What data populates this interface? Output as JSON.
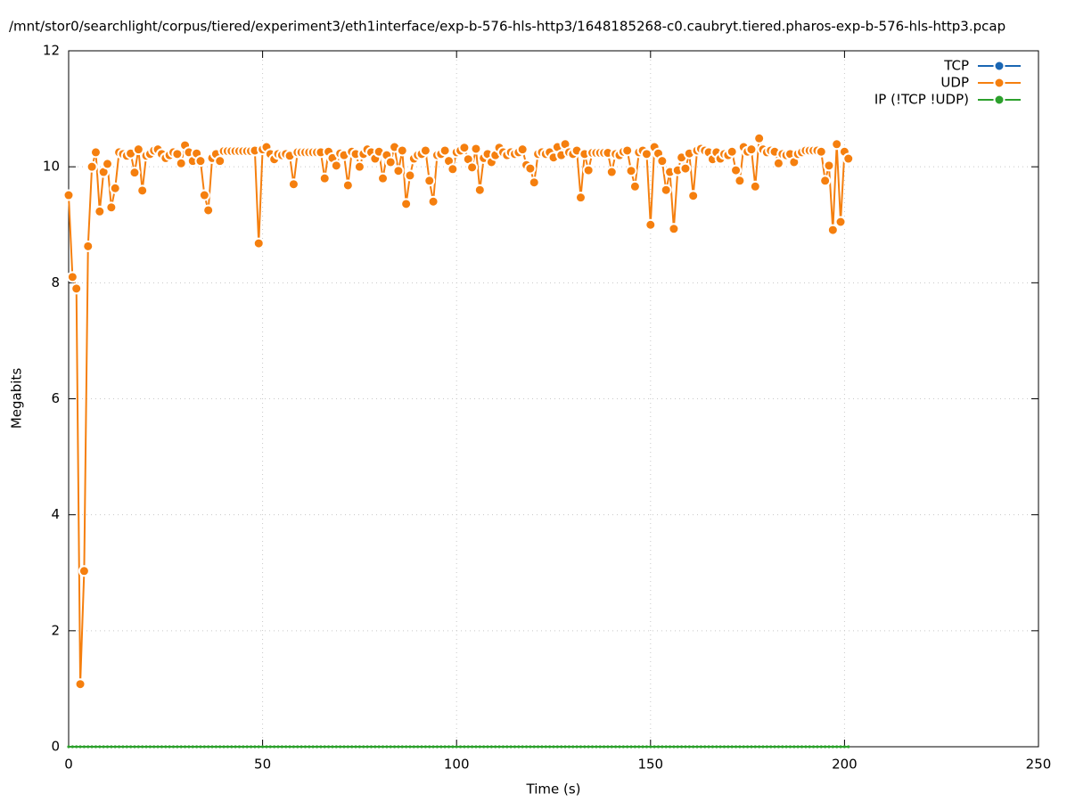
{
  "chart_data": {
    "type": "line",
    "title": "/mnt/stor0/searchlight/corpus/tiered/experiment3/eth1interface/exp-b-576-hls-http3/1648185268-c0.caubryt.tiered.pharos-exp-b-576-hls-http3.pcap",
    "x_label": "Time (s)",
    "y_label": "Megabits",
    "xlim": [
      0,
      250
    ],
    "xticks": [
      0,
      50,
      100,
      150,
      200,
      250
    ],
    "ylim": [
      0,
      12
    ],
    "yticks": [
      0,
      2,
      4,
      6,
      8,
      10,
      12
    ],
    "grid": true,
    "legend": "top-right",
    "x": [
      0,
      1,
      2,
      3,
      4,
      5,
      6,
      7,
      8,
      9,
      10,
      11,
      12,
      13,
      14,
      15,
      16,
      17,
      18,
      19,
      20,
      21,
      22,
      23,
      24,
      25,
      26,
      27,
      28,
      29,
      30,
      31,
      32,
      33,
      34,
      35,
      36,
      37,
      38,
      39,
      40,
      41,
      42,
      43,
      44,
      45,
      46,
      47,
      48,
      49,
      50,
      51,
      52,
      53,
      54,
      55,
      56,
      57,
      58,
      59,
      60,
      61,
      62,
      63,
      64,
      65,
      66,
      67,
      68,
      69,
      70,
      71,
      72,
      73,
      74,
      75,
      76,
      77,
      78,
      79,
      80,
      81,
      82,
      83,
      84,
      85,
      86,
      87,
      88,
      89,
      90,
      91,
      92,
      93,
      94,
      95,
      96,
      97,
      98,
      99,
      100,
      101,
      102,
      103,
      104,
      105,
      106,
      107,
      108,
      109,
      110,
      111,
      112,
      113,
      114,
      115,
      116,
      117,
      118,
      119,
      120,
      121,
      122,
      123,
      124,
      125,
      126,
      127,
      128,
      129,
      130,
      131,
      132,
      133,
      134,
      135,
      136,
      137,
      138,
      139,
      140,
      141,
      142,
      143,
      144,
      145,
      146,
      147,
      148,
      149,
      150,
      151,
      152,
      153,
      154,
      155,
      156,
      157,
      158,
      159,
      160,
      161,
      162,
      163,
      164,
      165,
      166,
      167,
      168,
      169,
      170,
      171,
      172,
      173,
      174,
      175,
      176,
      177,
      178,
      179,
      180,
      181,
      182,
      183,
      184,
      185,
      186,
      187,
      188,
      189,
      190,
      191,
      192,
      193,
      194,
      195,
      196,
      197,
      198,
      199,
      200,
      201
    ],
    "series": [
      {
        "name": "TCP",
        "color": "#1a66b3",
        "values": [
          null,
          null,
          null,
          null,
          null,
          null,
          null,
          null,
          null,
          null,
          null,
          null,
          null,
          null,
          null,
          null,
          null,
          null,
          null,
          null,
          null,
          null,
          null,
          null,
          null,
          null,
          null,
          null,
          null,
          null,
          null,
          null,
          null,
          null,
          null,
          null,
          null,
          null,
          null,
          null,
          null,
          null,
          null,
          null,
          null,
          null,
          null,
          null,
          null,
          null,
          null,
          null,
          null,
          null,
          null,
          null,
          null,
          null,
          null,
          null,
          null,
          null,
          null,
          null,
          null,
          null,
          null,
          null,
          null,
          null,
          null,
          null,
          null,
          null,
          null,
          null,
          null,
          null,
          null,
          null,
          null,
          null,
          null,
          null,
          null,
          null,
          null,
          null,
          null,
          null,
          null,
          null,
          null,
          null,
          null,
          null,
          null,
          null,
          null,
          null,
          null,
          null,
          null,
          null,
          null,
          null,
          null,
          null,
          null,
          null,
          null,
          null,
          null,
          null,
          null,
          null,
          null,
          null,
          null,
          null,
          null,
          null,
          null,
          null,
          null,
          null,
          null,
          null,
          null,
          null,
          null,
          null,
          null,
          null,
          null,
          null,
          null,
          null,
          null,
          null,
          null,
          null,
          null,
          null,
          null,
          null,
          null,
          null,
          null,
          null,
          null,
          null,
          null,
          null,
          null,
          null,
          null,
          null,
          null,
          null,
          null,
          null,
          null,
          null,
          null,
          null,
          null,
          null,
          null,
          null,
          null,
          null,
          null,
          null,
          null,
          null,
          null,
          null,
          null,
          null,
          null,
          null,
          null,
          null,
          null,
          null,
          null,
          null,
          null,
          null,
          null,
          null,
          null,
          null,
          null,
          null,
          null,
          null,
          null,
          null,
          null,
          null
        ]
      },
      {
        "name": "UDP",
        "color": "#f57f0e",
        "values": [
          9.51,
          8.1,
          7.9,
          1.08,
          3.03,
          8.63,
          10.0,
          10.25,
          9.23,
          9.91,
          10.05,
          9.3,
          9.63,
          10.25,
          10.22,
          10.19,
          10.23,
          9.9,
          10.3,
          9.59,
          10.19,
          10.22,
          10.28,
          10.3,
          10.22,
          10.15,
          10.2,
          10.25,
          10.22,
          10.06,
          10.37,
          10.25,
          10.1,
          10.23,
          10.1,
          9.51,
          9.25,
          10.15,
          10.22,
          10.1,
          10.27,
          10.27,
          10.27,
          10.27,
          10.27,
          10.27,
          10.27,
          10.27,
          10.28,
          8.68,
          10.3,
          10.34,
          10.22,
          10.13,
          10.22,
          10.2,
          10.22,
          10.19,
          9.7,
          10.25,
          10.25,
          10.25,
          10.25,
          10.25,
          10.25,
          10.25,
          9.8,
          10.26,
          10.15,
          10.02,
          10.23,
          10.2,
          9.68,
          10.26,
          10.22,
          10.0,
          10.22,
          10.3,
          10.25,
          10.14,
          10.26,
          9.8,
          10.2,
          10.08,
          10.34,
          9.93,
          10.28,
          9.36,
          9.85,
          10.14,
          10.2,
          10.22,
          10.28,
          9.76,
          9.4,
          10.2,
          10.22,
          10.28,
          10.1,
          9.96,
          10.25,
          10.28,
          10.33,
          10.13,
          9.99,
          10.31,
          9.6,
          10.15,
          10.22,
          10.08,
          10.2,
          10.33,
          10.25,
          10.2,
          10.25,
          10.22,
          10.25,
          10.3,
          10.03,
          9.97,
          9.73,
          10.22,
          10.25,
          10.22,
          10.25,
          10.16,
          10.34,
          10.2,
          10.39,
          10.25,
          10.22,
          10.28,
          9.47,
          10.22,
          9.94,
          10.24,
          10.24,
          10.24,
          10.24,
          10.24,
          9.91,
          10.22,
          10.2,
          10.26,
          10.28,
          9.93,
          9.66,
          10.25,
          10.28,
          10.22,
          9.0,
          10.34,
          10.23,
          10.1,
          9.6,
          9.91,
          8.93,
          9.94,
          10.16,
          9.97,
          10.23,
          9.5,
          10.28,
          10.31,
          10.28,
          10.25,
          10.13,
          10.25,
          10.14,
          10.22,
          10.2,
          10.26,
          9.94,
          9.76,
          10.34,
          10.26,
          10.3,
          9.66,
          10.49,
          10.3,
          10.25,
          10.28,
          10.26,
          10.06,
          10.22,
          10.2,
          10.22,
          10.08,
          10.22,
          10.25,
          10.28,
          10.28,
          10.28,
          10.28,
          10.26,
          9.76,
          10.02,
          8.91,
          10.39,
          9.05,
          10.26,
          10.14
        ]
      },
      {
        "name": "IP (!TCP  !UDP)",
        "color": "#2ca02c",
        "values": [
          0,
          0,
          0,
          0,
          0,
          0,
          0,
          0,
          0,
          0,
          0,
          0,
          0,
          0,
          0,
          0,
          0,
          0,
          0,
          0,
          0,
          0,
          0,
          0,
          0,
          0,
          0,
          0,
          0,
          0,
          0,
          0,
          0,
          0,
          0,
          0,
          0,
          0,
          0,
          0,
          0,
          0,
          0,
          0,
          0,
          0,
          0,
          0,
          0,
          0,
          0,
          0,
          0,
          0,
          0,
          0,
          0,
          0,
          0,
          0,
          0,
          0,
          0,
          0,
          0,
          0,
          0,
          0,
          0,
          0,
          0,
          0,
          0,
          0,
          0,
          0,
          0,
          0,
          0,
          0,
          0,
          0,
          0,
          0,
          0,
          0,
          0,
          0,
          0,
          0,
          0,
          0,
          0,
          0,
          0,
          0,
          0,
          0,
          0,
          0,
          0,
          0,
          0,
          0,
          0,
          0,
          0,
          0,
          0,
          0,
          0,
          0,
          0,
          0,
          0,
          0,
          0,
          0,
          0,
          0,
          0,
          0,
          0,
          0,
          0,
          0,
          0,
          0,
          0,
          0,
          0,
          0,
          0,
          0,
          0,
          0,
          0,
          0,
          0,
          0,
          0,
          0,
          0,
          0,
          0,
          0,
          0,
          0,
          0,
          0,
          0,
          0,
          0,
          0,
          0,
          0,
          0,
          0,
          0,
          0,
          0,
          0,
          0,
          0,
          0,
          0,
          0,
          0,
          0,
          0,
          0,
          0,
          0,
          0,
          0,
          0,
          0,
          0,
          0,
          0,
          0,
          0,
          0,
          0,
          0,
          0,
          0,
          0,
          0,
          0,
          0,
          0,
          0,
          0,
          0,
          0,
          0,
          0,
          0,
          0,
          0,
          0
        ]
      }
    ]
  }
}
